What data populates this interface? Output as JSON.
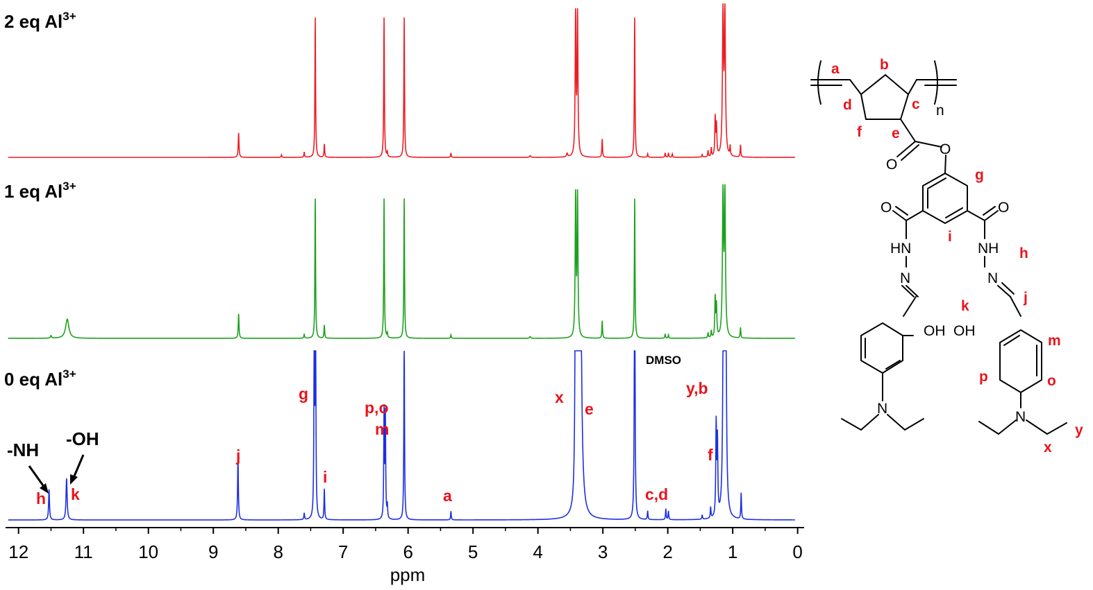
{
  "chart_data": {
    "type": "line",
    "title": "",
    "xlabel": "ppm",
    "ylabel": "",
    "xlim": [
      12.2,
      -0.1
    ],
    "x_reversed": true,
    "x_ticks": [
      12,
      11,
      10,
      9,
      8,
      7,
      6,
      5,
      4,
      3,
      2,
      1,
      0
    ],
    "grid": false,
    "legend": "none",
    "series": [
      {
        "name": "2 eq Al",
        "name_sup": "3+",
        "color": "#ee1c24",
        "peaks": [
          {
            "ppm": 8.61,
            "h": 0.28,
            "w": 0.007
          },
          {
            "ppm": 7.95,
            "h": 0.03,
            "w": 0.006
          },
          {
            "ppm": 7.6,
            "h": 0.06,
            "w": 0.006
          },
          {
            "ppm": 7.43,
            "h": 1.6,
            "w": 0.006
          },
          {
            "ppm": 7.29,
            "h": 0.15,
            "w": 0.006
          },
          {
            "ppm": 6.37,
            "h": 1.6,
            "w": 0.006
          },
          {
            "ppm": 6.32,
            "h": 0.05,
            "w": 0.006
          },
          {
            "ppm": 6.06,
            "h": 1.6,
            "w": 0.006
          },
          {
            "ppm": 5.34,
            "h": 0.05,
            "w": 0.006
          },
          {
            "ppm": 4.12,
            "h": 0.02,
            "w": 0.01
          },
          {
            "ppm": 3.55,
            "h": 0.04,
            "w": 0.01
          },
          {
            "ppm": 3.42,
            "h": 1.6,
            "w": 0.008
          },
          {
            "ppm": 3.39,
            "h": 1.6,
            "w": 0.008
          },
          {
            "ppm": 3.01,
            "h": 0.21,
            "w": 0.006
          },
          {
            "ppm": 2.51,
            "h": 1.6,
            "w": 0.006
          },
          {
            "ppm": 2.31,
            "h": 0.04,
            "w": 0.006
          },
          {
            "ppm": 2.04,
            "h": 0.05,
            "w": 0.006
          },
          {
            "ppm": 1.99,
            "h": 0.05,
            "w": 0.006
          },
          {
            "ppm": 1.93,
            "h": 0.04,
            "w": 0.006
          },
          {
            "ppm": 1.47,
            "h": 0.03,
            "w": 0.006
          },
          {
            "ppm": 1.38,
            "h": 0.07,
            "w": 0.006
          },
          {
            "ppm": 1.33,
            "h": 0.1,
            "w": 0.006
          },
          {
            "ppm": 1.27,
            "h": 0.44,
            "w": 0.007
          },
          {
            "ppm": 1.25,
            "h": 0.35,
            "w": 0.007
          },
          {
            "ppm": 1.15,
            "h": 1.6,
            "w": 0.01
          },
          {
            "ppm": 1.12,
            "h": 1.6,
            "w": 0.01
          },
          {
            "ppm": 1.04,
            "h": 0.11,
            "w": 0.006
          },
          {
            "ppm": 0.88,
            "h": 0.14,
            "w": 0.006
          }
        ]
      },
      {
        "name": "1 eq Al",
        "name_sup": "3+",
        "color": "#1ca11c",
        "peaks": [
          {
            "ppm": 11.5,
            "h": 0.03,
            "w": 0.01
          },
          {
            "ppm": 11.25,
            "h": 0.22,
            "w": 0.03
          },
          {
            "ppm": 8.61,
            "h": 0.28,
            "w": 0.007
          },
          {
            "ppm": 7.6,
            "h": 0.05,
            "w": 0.006
          },
          {
            "ppm": 7.43,
            "h": 1.6,
            "w": 0.006
          },
          {
            "ppm": 7.29,
            "h": 0.15,
            "w": 0.006
          },
          {
            "ppm": 6.37,
            "h": 1.6,
            "w": 0.006
          },
          {
            "ppm": 6.32,
            "h": 0.05,
            "w": 0.006
          },
          {
            "ppm": 6.06,
            "h": 1.6,
            "w": 0.006
          },
          {
            "ppm": 5.34,
            "h": 0.04,
            "w": 0.006
          },
          {
            "ppm": 4.12,
            "h": 0.02,
            "w": 0.01
          },
          {
            "ppm": 3.42,
            "h": 1.6,
            "w": 0.008
          },
          {
            "ppm": 3.39,
            "h": 1.6,
            "w": 0.008
          },
          {
            "ppm": 3.01,
            "h": 0.2,
            "w": 0.006
          },
          {
            "ppm": 2.51,
            "h": 1.6,
            "w": 0.006
          },
          {
            "ppm": 2.04,
            "h": 0.05,
            "w": 0.006
          },
          {
            "ppm": 1.99,
            "h": 0.04,
            "w": 0.006
          },
          {
            "ppm": 1.38,
            "h": 0.06,
            "w": 0.006
          },
          {
            "ppm": 1.33,
            "h": 0.08,
            "w": 0.006
          },
          {
            "ppm": 1.27,
            "h": 0.45,
            "w": 0.007
          },
          {
            "ppm": 1.25,
            "h": 0.36,
            "w": 0.007
          },
          {
            "ppm": 1.15,
            "h": 1.6,
            "w": 0.01
          },
          {
            "ppm": 1.12,
            "h": 1.6,
            "w": 0.01
          },
          {
            "ppm": 0.88,
            "h": 0.12,
            "w": 0.006
          }
        ]
      },
      {
        "name": "0 eq Al",
        "name_sup": "3+",
        "color": "#1c2fe0",
        "peaks": [
          {
            "ppm": 11.53,
            "h": 0.14,
            "w": 0.008
          },
          {
            "ppm": 11.26,
            "h": 0.19,
            "w": 0.01
          },
          {
            "ppm": 8.62,
            "h": 0.29,
            "w": 0.007
          },
          {
            "ppm": 7.6,
            "h": 0.03,
            "w": 0.006
          },
          {
            "ppm": 7.445,
            "h": 1.0,
            "w": 0.006
          },
          {
            "ppm": 7.425,
            "h": 0.97,
            "w": 0.006
          },
          {
            "ppm": 7.29,
            "h": 0.14,
            "w": 0.006
          },
          {
            "ppm": 6.37,
            "h": 0.49,
            "w": 0.006
          },
          {
            "ppm": 6.35,
            "h": 0.47,
            "w": 0.006
          },
          {
            "ppm": 6.32,
            "h": 0.06,
            "w": 0.006
          },
          {
            "ppm": 6.06,
            "h": 0.85,
            "w": 0.006
          },
          {
            "ppm": 5.34,
            "h": 0.04,
            "w": 0.006
          },
          {
            "ppm": 3.42,
            "h": 1.6,
            "w": 0.008
          },
          {
            "ppm": 3.4,
            "h": 1.6,
            "w": 0.008
          },
          {
            "ppm": 3.35,
            "h": 1.6,
            "w": 0.02
          },
          {
            "ppm": 2.51,
            "h": 1.6,
            "w": 0.006
          },
          {
            "ppm": 2.31,
            "h": 0.04,
            "w": 0.006
          },
          {
            "ppm": 2.03,
            "h": 0.05,
            "w": 0.006
          },
          {
            "ppm": 1.99,
            "h": 0.04,
            "w": 0.006
          },
          {
            "ppm": 1.47,
            "h": 0.02,
            "w": 0.006
          },
          {
            "ppm": 1.34,
            "h": 0.05,
            "w": 0.006
          },
          {
            "ppm": 1.255,
            "h": 0.42,
            "w": 0.007
          },
          {
            "ppm": 1.235,
            "h": 0.34,
            "w": 0.007
          },
          {
            "ppm": 1.14,
            "h": 1.6,
            "w": 0.01
          },
          {
            "ppm": 1.11,
            "h": 1.6,
            "w": 0.01
          },
          {
            "ppm": 0.87,
            "h": 0.12,
            "w": 0.006
          }
        ]
      }
    ],
    "annotations": {
      "peaks_0eq": [
        "-NH",
        "h",
        "-OH",
        "k",
        "j",
        "g",
        "i",
        "p,o",
        "m",
        "a",
        "x",
        "e",
        "DMSO",
        "c,d",
        "y,b",
        "f"
      ],
      "structure": {
        "red": [
          "a",
          "b",
          "c",
          "d",
          "e",
          "f",
          "g",
          "i",
          "h",
          "j",
          "k",
          "m",
          "p",
          "o",
          "x",
          "y"
        ],
        "black": [
          "n",
          "O",
          "O",
          "O",
          "O",
          "HN",
          "N",
          "NH",
          "N",
          "OH",
          "OH",
          "N",
          "N"
        ]
      }
    }
  }
}
